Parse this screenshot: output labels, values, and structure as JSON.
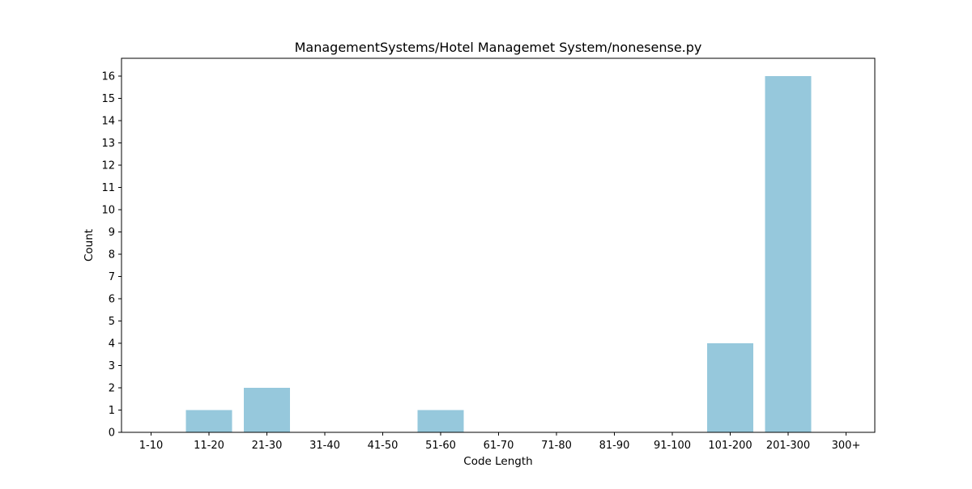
{
  "chart_data": {
    "type": "bar",
    "title": "ManagementSystems/Hotel Managemet System/nonesense.py",
    "xlabel": "Code Length",
    "ylabel": "Count",
    "categories": [
      "1-10",
      "11-20",
      "21-30",
      "31-40",
      "41-50",
      "51-60",
      "61-70",
      "71-80",
      "81-90",
      "91-100",
      "101-200",
      "201-300",
      "300+"
    ],
    "values": [
      0,
      1,
      2,
      0,
      0,
      1,
      0,
      0,
      0,
      0,
      4,
      16,
      0
    ],
    "ylim": [
      0,
      16.8
    ],
    "yticks": [
      0,
      1,
      2,
      3,
      4,
      5,
      6,
      7,
      8,
      9,
      10,
      11,
      12,
      13,
      14,
      15,
      16
    ],
    "grid": false,
    "bar_color": "#96c8dc"
  }
}
